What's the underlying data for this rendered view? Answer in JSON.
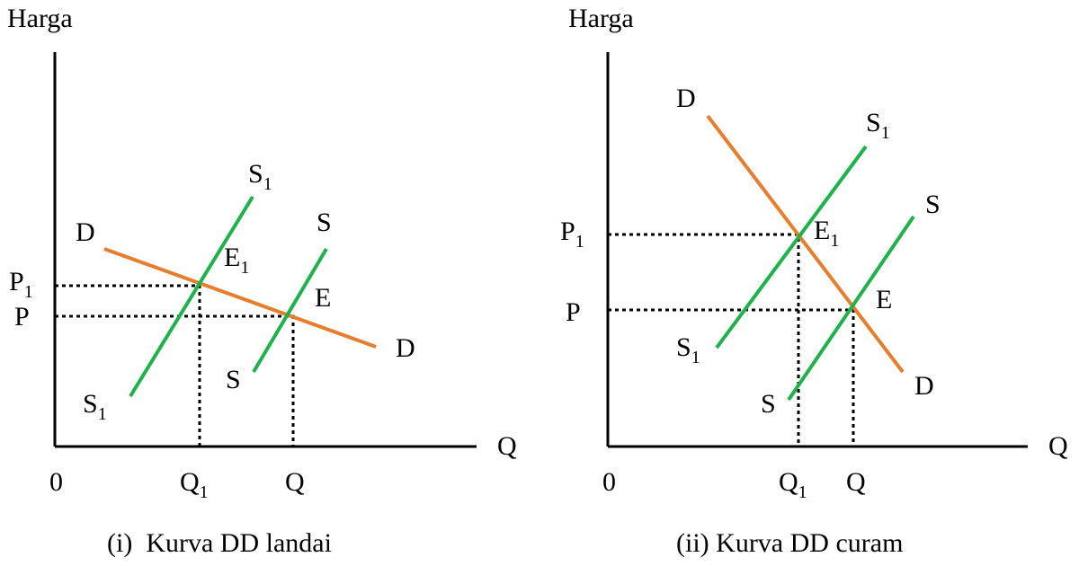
{
  "colors": {
    "demand": "#E87D2B",
    "supply": "#1DB34A",
    "axis": "#000000"
  },
  "panels": [
    {
      "name": "landai",
      "y_axis_label": "Harga",
      "x_axis_label": "Q",
      "origin_label": "0",
      "caption": "(i)  Kurva DD landai",
      "demand": {
        "label_start": "D",
        "label_end": "D"
      },
      "supply_original": {
        "label_top": "S",
        "label_bottom": "S"
      },
      "supply_shifted": {
        "label_top": "S",
        "label_top_sub": "1",
        "label_bottom": "S",
        "label_bottom_sub": "1"
      },
      "equilibrium": {
        "label": "E"
      },
      "equilibrium_new": {
        "label": "E",
        "label_sub": "1"
      },
      "price_ticks": [
        {
          "label": "P",
          "sub": "1"
        },
        {
          "label": "P",
          "sub": ""
        }
      ],
      "quantity_ticks": [
        {
          "label": "Q",
          "sub": "1"
        },
        {
          "label": "Q",
          "sub": ""
        }
      ]
    },
    {
      "name": "curam",
      "y_axis_label": "Harga",
      "x_axis_label": "Q",
      "origin_label": "0",
      "caption": "(ii) Kurva DD curam",
      "demand": {
        "label_start": "D",
        "label_end": "D"
      },
      "supply_original": {
        "label_top": "S",
        "label_bottom": "S"
      },
      "supply_shifted": {
        "label_top": "S",
        "label_top_sub": "1",
        "label_bottom": "S",
        "label_bottom_sub": "1"
      },
      "equilibrium": {
        "label": "E"
      },
      "equilibrium_new": {
        "label": "E",
        "label_sub": "1"
      },
      "price_ticks": [
        {
          "label": "P",
          "sub": "1"
        },
        {
          "label": "P",
          "sub": ""
        }
      ],
      "quantity_ticks": [
        {
          "label": "Q",
          "sub": "1"
        },
        {
          "label": "Q",
          "sub": ""
        }
      ]
    }
  ]
}
